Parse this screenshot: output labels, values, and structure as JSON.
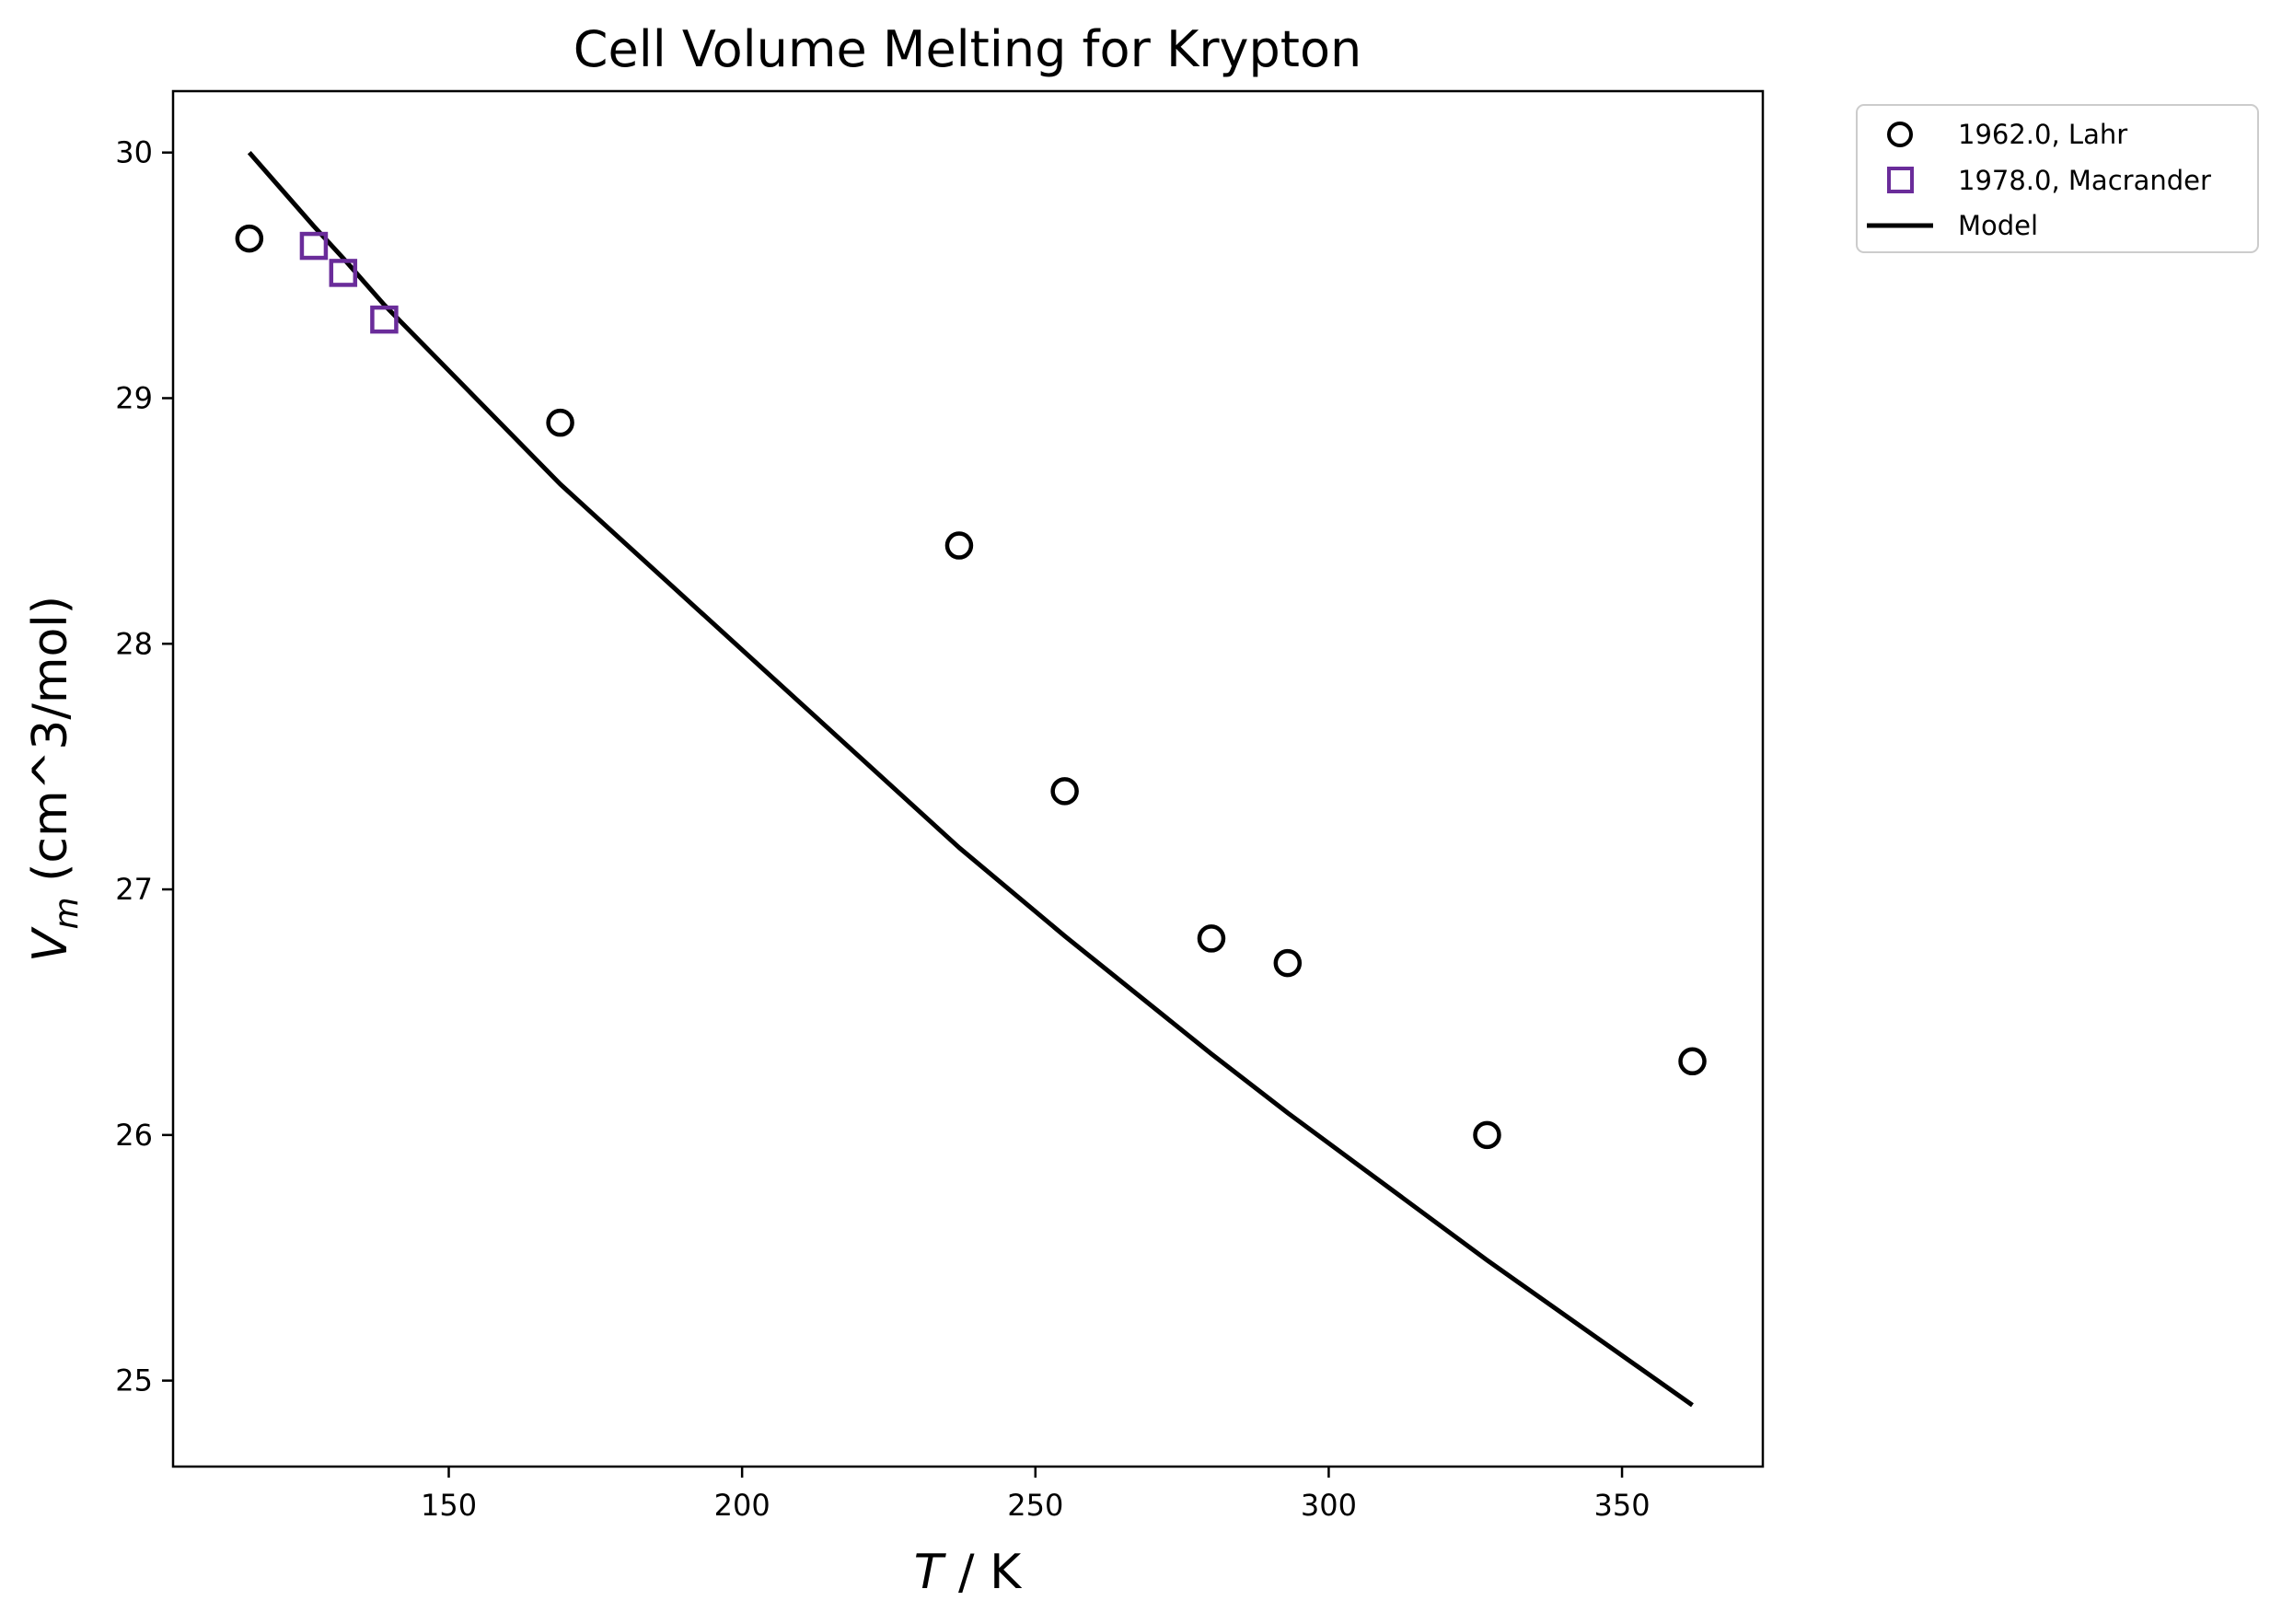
{
  "chart_data": {
    "type": "scatter",
    "title": "Cell Volume Melting for Krypton",
    "xlabel": {
      "symbol": "T",
      "rest": " / K"
    },
    "ylabel": {
      "symbol": "V",
      "subscript": "m",
      "rest": " (cm^3/mol)"
    },
    "xlim": [
      103,
      374
    ],
    "ylim": [
      24.65,
      30.25
    ],
    "xticks": [
      150,
      200,
      250,
      300,
      350
    ],
    "yticks": [
      25,
      26,
      27,
      28,
      29,
      30
    ],
    "grid": false,
    "legend_position": "outside-top-right",
    "series": [
      {
        "name": "1962.0, Lahr",
        "kind": "scatter",
        "marker": "circle",
        "color": "#000000",
        "points": [
          {
            "x": 116,
            "y": 29.65
          },
          {
            "x": 169,
            "y": 28.9
          },
          {
            "x": 237,
            "y": 28.4
          },
          {
            "x": 255,
            "y": 27.4
          },
          {
            "x": 280,
            "y": 26.8
          },
          {
            "x": 293,
            "y": 26.7
          },
          {
            "x": 327,
            "y": 26.0
          },
          {
            "x": 362,
            "y": 26.3
          }
        ]
      },
      {
        "name": "1978.0, Macrander",
        "kind": "scatter",
        "marker": "square",
        "color": "#6a2c9a",
        "points": [
          {
            "x": 127,
            "y": 29.62
          },
          {
            "x": 132,
            "y": 29.51
          },
          {
            "x": 139,
            "y": 29.32
          }
        ]
      },
      {
        "name": "Model",
        "kind": "line",
        "color": "#000000",
        "points": [
          {
            "x": 116,
            "y": 30.0
          },
          {
            "x": 127,
            "y": 29.7
          },
          {
            "x": 132,
            "y": 29.57
          },
          {
            "x": 139,
            "y": 29.38
          },
          {
            "x": 169,
            "y": 28.65
          },
          {
            "x": 237,
            "y": 27.17
          },
          {
            "x": 255,
            "y": 26.81
          },
          {
            "x": 280,
            "y": 26.33
          },
          {
            "x": 293,
            "y": 26.09
          },
          {
            "x": 327,
            "y": 25.49
          },
          {
            "x": 362,
            "y": 24.9
          }
        ]
      }
    ]
  }
}
